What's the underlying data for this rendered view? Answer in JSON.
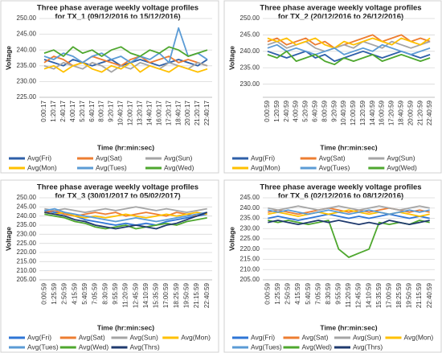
{
  "chart_data": [
    {
      "type": "line",
      "title": [
        "Three phase average weekly voltage profiles",
        "for TX_1 (09/12/2016 to 15/12/2016)"
      ],
      "x_label": "Time (hr:min:sec)",
      "y_label": "Voltage",
      "categories": [
        "0:00:17",
        "1:20:17",
        "2:40:17",
        "4:00:17",
        "5:20:17",
        "6:40:17",
        "8:00:17",
        "9:20:17",
        "10:40:17",
        "12:00:17",
        "13:20:17",
        "14:40:17",
        "16:00:17",
        "17:20:17",
        "18:40:17",
        "20:00:17",
        "21:20:17",
        "22:40:17"
      ],
      "ylim": [
        225,
        250
      ],
      "yticks": [
        {
          "value": 225,
          "label": "225.00"
        },
        {
          "value": 230,
          "label": "230.00"
        },
        {
          "value": 235,
          "label": "235.00"
        },
        {
          "value": 240,
          "label": "240.00"
        },
        {
          "value": 245,
          "label": "245.00"
        },
        {
          "value": 250,
          "label": "250.00"
        }
      ],
      "grid": true,
      "series": [
        {
          "name": "Avg(Fri)",
          "color": "#2e5fa8",
          "values": [
            237,
            236,
            235,
            237,
            236,
            235,
            236,
            237,
            235,
            236,
            237,
            236,
            235,
            236,
            237,
            236,
            235,
            237
          ]
        },
        {
          "name": "Avg(Sat)",
          "color": "#ed7d31",
          "values": [
            236,
            238,
            237,
            235,
            236,
            238,
            237,
            236,
            235,
            237,
            238,
            236,
            237,
            238,
            236,
            237,
            236,
            235
          ]
        },
        {
          "name": "Avg(Sun)",
          "color": "#a5a5a5",
          "values": [
            235,
            234,
            236,
            235,
            234,
            236,
            235,
            233,
            235,
            234,
            236,
            235,
            234,
            236,
            235,
            234,
            236,
            235
          ]
        },
        {
          "name": "Avg(Mon)",
          "color": "#ffc000",
          "values": [
            234,
            235,
            233,
            235,
            236,
            234,
            233,
            235,
            234,
            236,
            233,
            235,
            234,
            233,
            235,
            234,
            233,
            234
          ]
        },
        {
          "name": "Avg(Tues)",
          "color": "#5b9bd5",
          "values": [
            238,
            237,
            239,
            238,
            236,
            238,
            239,
            237,
            238,
            236,
            238,
            237,
            239,
            236,
            247,
            238,
            239,
            237
          ]
        },
        {
          "name": "Avg(Wed)",
          "color": "#4ea72e",
          "values": [
            239,
            240,
            238,
            241,
            239,
            240,
            238,
            240,
            241,
            239,
            238,
            240,
            239,
            241,
            240,
            238,
            239,
            240
          ]
        }
      ]
    },
    {
      "type": "line",
      "title": [
        "Three phase average weekly voltage profiles",
        "for TX_2 (20/12/2016 to 26/12/2016)"
      ],
      "x_label": "Time (hr:min:sec)",
      "y_label": "Voltage",
      "categories": [
        "0:00:59",
        "1:20:59",
        "2:40:59",
        "4:00:59",
        "5:20:59",
        "6:40:59",
        "8:00:59",
        "9:20:59",
        "10:40:59",
        "12:00:59",
        "13:20:59",
        "14:40:59",
        "16:00:59",
        "17:20:59",
        "18:40:59",
        "20:00:59",
        "21:20:59",
        "22:40:59"
      ],
      "ylim": [
        226,
        250
      ],
      "yticks": [
        {
          "value": 230,
          "label": "230.00"
        },
        {
          "value": 235,
          "label": "235.00"
        },
        {
          "value": 240,
          "label": "240.00"
        },
        {
          "value": 245,
          "label": "245.00"
        },
        {
          "value": 250,
          "label": "250.00"
        }
      ],
      "grid": true,
      "series": [
        {
          "name": "Avg(Fri)",
          "color": "#2e5fa8",
          "values": [
            240,
            239,
            238,
            239,
            240,
            238,
            239,
            237,
            238,
            239,
            240,
            239,
            238,
            239,
            240,
            239,
            238,
            239
          ]
        },
        {
          "name": "Avg(Sat)",
          "color": "#ed7d31",
          "values": [
            243,
            244,
            242,
            243,
            244,
            242,
            243,
            241,
            242,
            243,
            244,
            245,
            243,
            244,
            245,
            243,
            244,
            243
          ]
        },
        {
          "name": "Avg(Sun)",
          "color": "#a5a5a5",
          "values": [
            242,
            243,
            241,
            242,
            243,
            241,
            240,
            241,
            242,
            241,
            243,
            242,
            241,
            243,
            242,
            241,
            242,
            243
          ]
        },
        {
          "name": "Avg(Mon)",
          "color": "#ffc000",
          "values": [
            244,
            243,
            244,
            242,
            243,
            244,
            242,
            241,
            243,
            242,
            243,
            244,
            243,
            242,
            244,
            243,
            242,
            244
          ]
        },
        {
          "name": "Avg(Tues)",
          "color": "#5b9bd5",
          "values": [
            241,
            242,
            240,
            241,
            240,
            239,
            240,
            241,
            239,
            240,
            241,
            240,
            242,
            241,
            240,
            239,
            240,
            241
          ]
        },
        {
          "name": "Avg(Wed)",
          "color": "#4ea72e",
          "values": [
            239,
            238,
            240,
            237,
            238,
            239,
            237,
            236,
            238,
            237,
            238,
            239,
            237,
            238,
            239,
            238,
            237,
            238
          ]
        }
      ]
    },
    {
      "type": "line",
      "title": [
        "Three phase average weekly voltage profiles",
        "for TX_3 (30/01/2017 to 05/02/2017)"
      ],
      "x_label": "Time (hr:min:sec)",
      "y_label": "Voltage",
      "categories": [
        "0:00:59",
        "1:25:59",
        "2:50:59",
        "4:15:59",
        "5:40:59",
        "7:05:59",
        "8:30:59",
        "9:55:59",
        "11:20:59",
        "12:45:59",
        "14:10:59",
        "15:35:59",
        "17:00:59",
        "18:25:59",
        "19:50:59",
        "21:15:59",
        "22:40:59"
      ],
      "ylim": [
        205,
        250
      ],
      "yticks": [
        {
          "value": 205,
          "label": "205.00"
        },
        {
          "value": 210,
          "label": "210.00"
        },
        {
          "value": 215,
          "label": "215.00"
        },
        {
          "value": 220,
          "label": "220.00"
        },
        {
          "value": 225,
          "label": "225.00"
        },
        {
          "value": 230,
          "label": "230.00"
        },
        {
          "value": 235,
          "label": "235.00"
        },
        {
          "value": 240,
          "label": "240.00"
        },
        {
          "value": 245,
          "label": "245.00"
        },
        {
          "value": 250,
          "label": "250.00"
        }
      ],
      "grid": true,
      "series": [
        {
          "name": "Avg(Fri)",
          "color": "#2e75d6",
          "values": [
            243,
            242,
            241,
            240,
            238,
            237,
            236,
            235,
            236,
            235,
            236,
            235,
            237,
            238,
            239,
            240,
            241
          ]
        },
        {
          "name": "Avg(Sat)",
          "color": "#ed7d31",
          "values": [
            242,
            243,
            241,
            240,
            241,
            242,
            241,
            242,
            240,
            241,
            242,
            241,
            240,
            242,
            241,
            240,
            242
          ]
        },
        {
          "name": "Avg(Sun)",
          "color": "#a5a5a5",
          "values": [
            244,
            243,
            244,
            243,
            242,
            243,
            244,
            243,
            244,
            245,
            244,
            243,
            244,
            243,
            242,
            243,
            244
          ]
        },
        {
          "name": "Avg(Mon)",
          "color": "#ffc000",
          "values": [
            242,
            241,
            242,
            240,
            239,
            240,
            239,
            240,
            241,
            240,
            239,
            240,
            241,
            240,
            241,
            242,
            241
          ]
        },
        {
          "name": "Avg(Tues)",
          "color": "#5b9bd5",
          "values": [
            243,
            244,
            242,
            241,
            240,
            239,
            238,
            237,
            238,
            239,
            238,
            237,
            238,
            239,
            240,
            241,
            242
          ]
        },
        {
          "name": "Avg(Wed)",
          "color": "#4ea72e",
          "values": [
            241,
            240,
            239,
            237,
            236,
            234,
            233,
            234,
            235,
            233,
            234,
            235,
            236,
            235,
            237,
            238,
            239
          ]
        },
        {
          "name": "Avg(Thrs)",
          "color": "#1f3a6e",
          "values": [
            242,
            241,
            240,
            238,
            237,
            235,
            234,
            233,
            234,
            235,
            234,
            233,
            235,
            236,
            238,
            240,
            242
          ]
        }
      ]
    },
    {
      "type": "line",
      "title": [
        "Three phase average weekly voltage profiles",
        "for TX_6 (02/12/2016 to 08/12/2016)"
      ],
      "x_label": "Time (hr:min:sec)",
      "y_label": "Voltage",
      "categories": [
        "0:00:59",
        "1:25:59",
        "2:50:59",
        "4:15:59",
        "5:40:59",
        "7:05:59",
        "8:30:59",
        "9:55:59",
        "11:20:59",
        "12:45:59",
        "14:10:59",
        "15:35:59",
        "17:00:59",
        "18:25:59",
        "19:50:59",
        "21:15:59",
        "22:40:59"
      ],
      "ylim": [
        205,
        245
      ],
      "yticks": [
        {
          "value": 205,
          "label": "205.00"
        },
        {
          "value": 210,
          "label": "210.00"
        },
        {
          "value": 215,
          "label": "215.00"
        },
        {
          "value": 220,
          "label": "220.00"
        },
        {
          "value": 225,
          "label": "225.00"
        },
        {
          "value": 230,
          "label": "230.00"
        },
        {
          "value": 235,
          "label": "235.00"
        },
        {
          "value": 240,
          "label": "240.00"
        },
        {
          "value": 245,
          "label": "245.00"
        }
      ],
      "grid": true,
      "series": [
        {
          "name": "Avg(Fri)",
          "color": "#2e75d6",
          "values": [
            235,
            236,
            235,
            234,
            235,
            236,
            237,
            236,
            235,
            236,
            235,
            236,
            237,
            236,
            235,
            236,
            235
          ]
        },
        {
          "name": "Avg(Sat)",
          "color": "#ed7d31",
          "values": [
            238,
            239,
            238,
            237,
            238,
            239,
            240,
            239,
            238,
            239,
            238,
            239,
            240,
            239,
            238,
            239,
            238
          ]
        },
        {
          "name": "Avg(Sun)",
          "color": "#a5a5a5",
          "values": [
            240,
            239,
            240,
            241,
            240,
            239,
            240,
            241,
            240,
            239,
            240,
            241,
            240,
            239,
            240,
            241,
            240
          ]
        },
        {
          "name": "Avg(Mon)",
          "color": "#ffc000",
          "values": [
            237,
            238,
            237,
            236,
            237,
            238,
            237,
            238,
            239,
            238,
            237,
            238,
            237,
            238,
            237,
            236,
            237
          ]
        },
        {
          "name": "Avg(Tues)",
          "color": "#5b9bd5",
          "values": [
            239,
            238,
            239,
            238,
            237,
            238,
            239,
            238,
            237,
            238,
            239,
            238,
            237,
            238,
            239,
            238,
            239
          ]
        },
        {
          "name": "Avg(Wed)",
          "color": "#4ea72e",
          "values": [
            234,
            233,
            234,
            233,
            232,
            233,
            234,
            220,
            216,
            218,
            220,
            233,
            232,
            233,
            232,
            234,
            233
          ]
        },
        {
          "name": "Avg(Thrs)",
          "color": "#1f3a6e",
          "values": [
            233,
            234,
            233,
            232,
            233,
            234,
            233,
            234,
            233,
            232,
            233,
            232,
            234,
            233,
            232,
            233,
            234
          ]
        }
      ]
    }
  ]
}
